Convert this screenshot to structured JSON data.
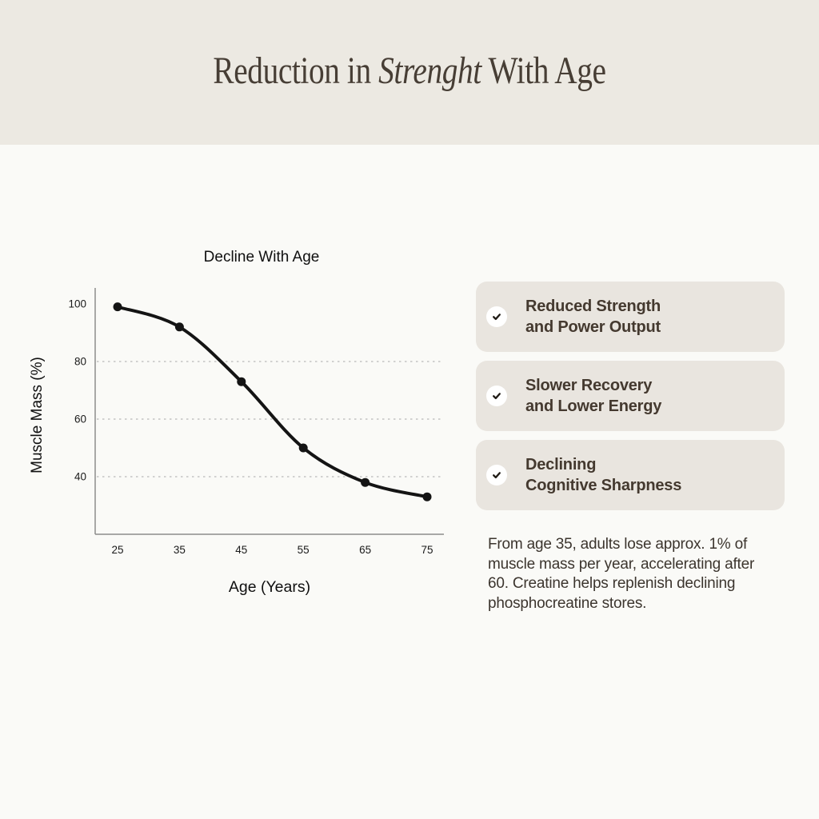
{
  "header": {
    "title_prefix": "Reduction in ",
    "title_italic": "Strenght",
    "title_suffix": " With Age"
  },
  "chart_data": {
    "type": "line",
    "title": "Decline With Age",
    "xlabel": "Age (Years)",
    "ylabel": "Muscle Mass (%)",
    "x": [
      25,
      35,
      45,
      55,
      65,
      75
    ],
    "y": [
      99,
      92,
      73,
      50,
      38,
      33
    ],
    "xticks": [
      "25",
      "35",
      "45",
      "55",
      "65",
      "75"
    ],
    "yticks": [
      "40",
      "60",
      "80",
      "100"
    ],
    "ytick_values": [
      40,
      60,
      80,
      100
    ],
    "gridline_values": [
      40,
      60,
      80
    ],
    "xlim": [
      21,
      78
    ],
    "ylim": [
      20,
      105.5
    ],
    "grid": "horizontal dashed",
    "legend_position": "none",
    "line_color": "#141414",
    "marker": "filled-circle",
    "axis_color": "#8C8C8C",
    "gridline_color": "#B9B9B9"
  },
  "benefits": [
    {
      "icon": "check-icon",
      "line1": "Reduced Strength",
      "line2": "and Power Output"
    },
    {
      "icon": "check-icon",
      "line1": "Slower Recovery",
      "line2": "and Lower Energy"
    },
    {
      "icon": "check-icon",
      "line1": "Declining",
      "line2": "Cognitive Sharpness"
    }
  ],
  "footnote": "From age 35, adults lose approx. 1% of muscle mass per year, accelerating after 60. Creatine helps replenish declining phosphocreatine stores.",
  "colors": {
    "header_bg": "#ECE9E2",
    "page_bg": "#FAFAF7",
    "card_bg": "#E9E5DF",
    "title_text": "#473E35",
    "body_text": "#3C352E",
    "chart_ink": "#141414",
    "check_circle": "#FFFFFF",
    "check_mark": "#201B15"
  }
}
